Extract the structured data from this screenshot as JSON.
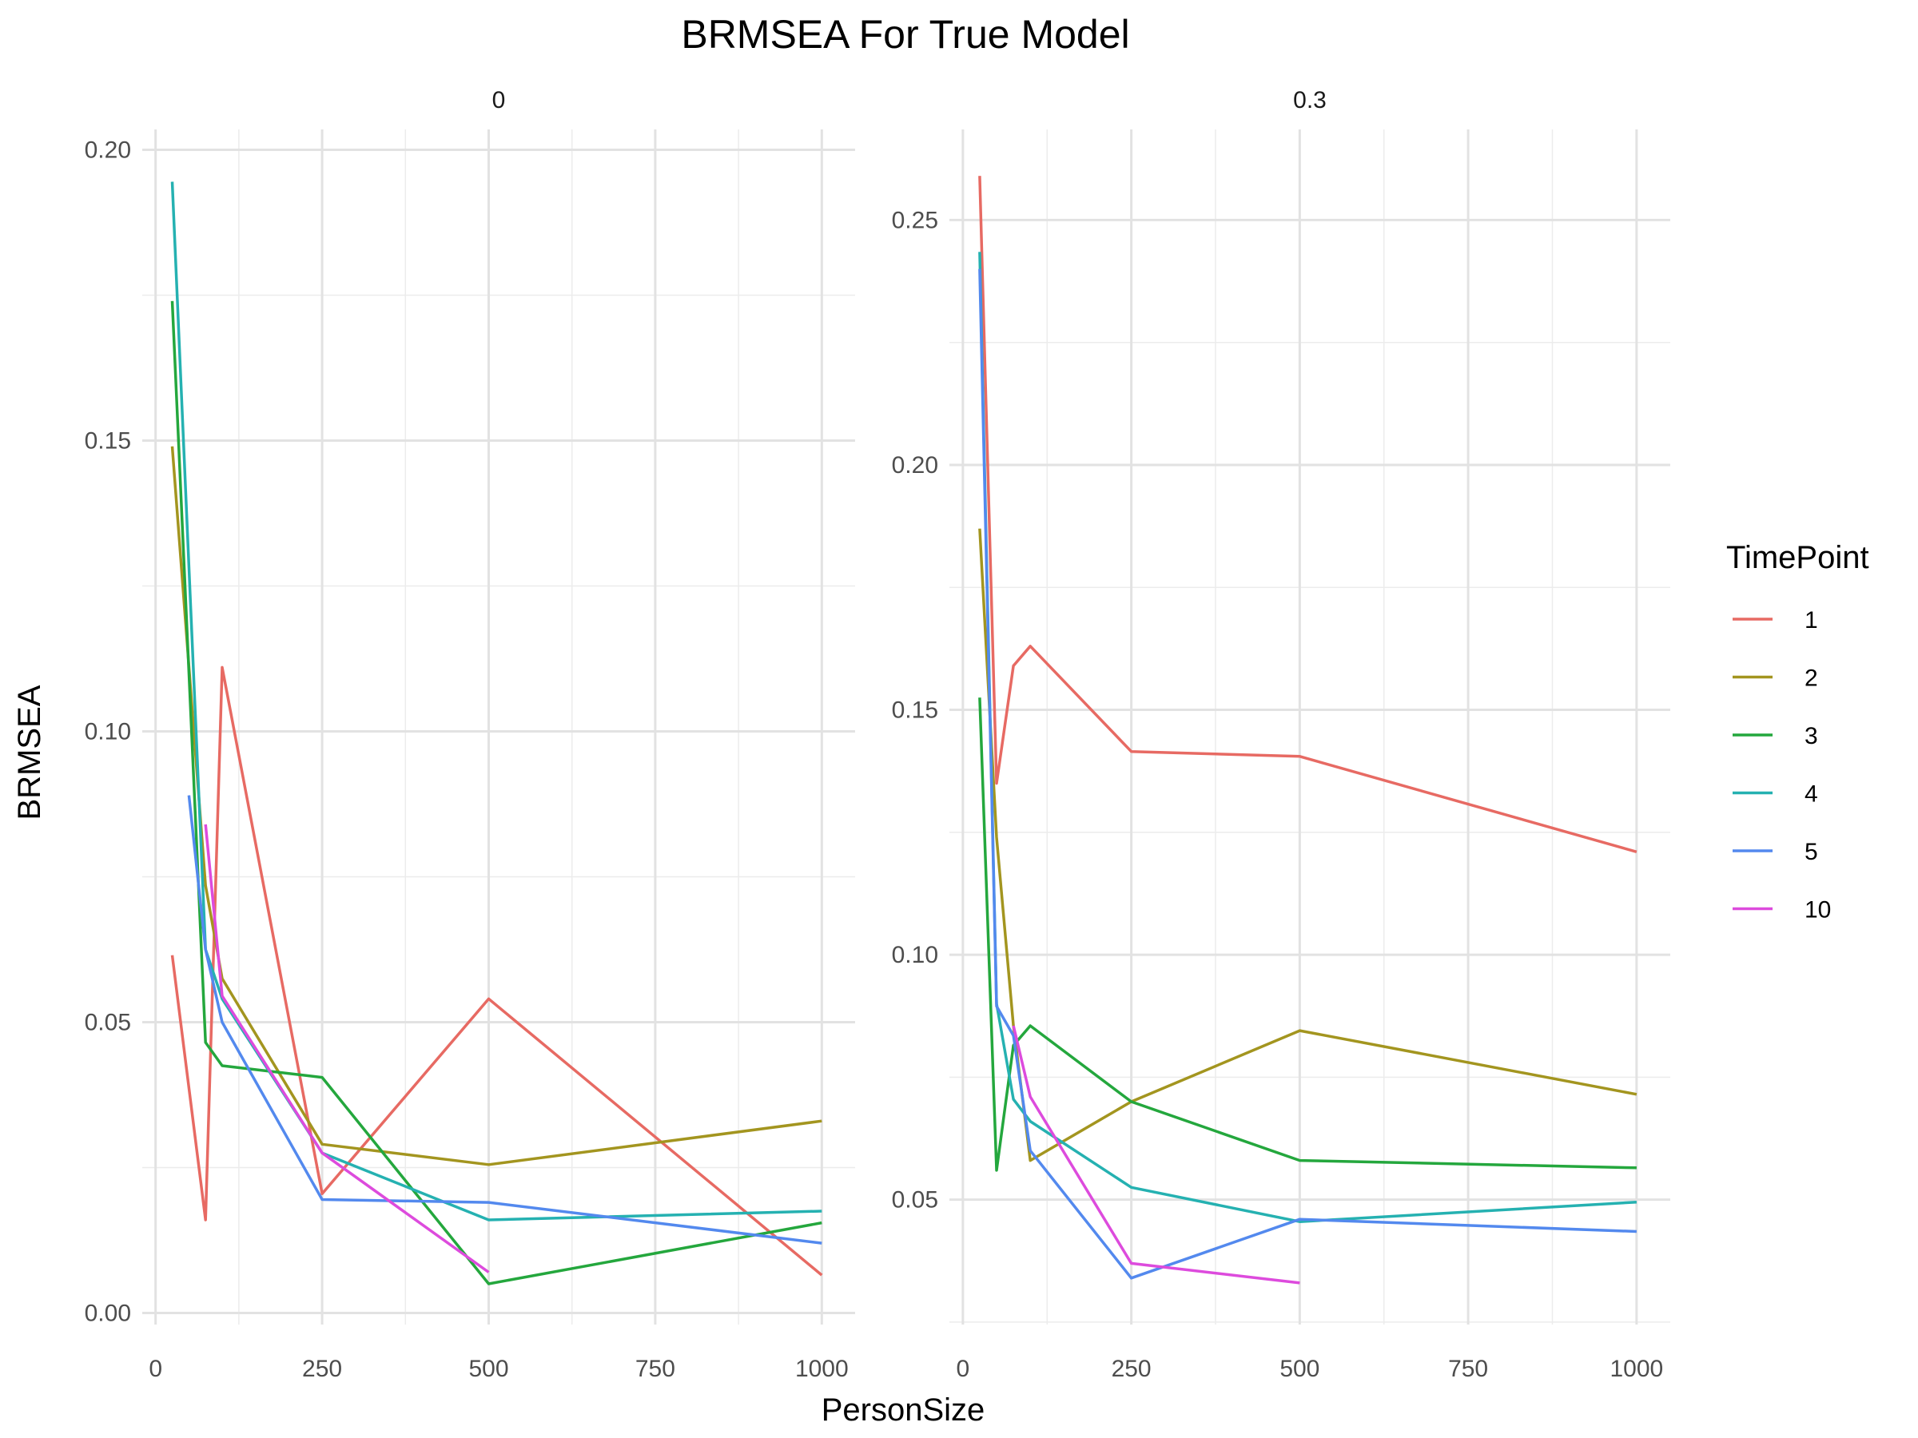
{
  "chart_data": {
    "type": "line",
    "title": "BRMSEA For True Model",
    "xlabel": "PersonSize",
    "ylabel": "BRMSEA",
    "legend": {
      "title": "TimePoint",
      "placement": "right",
      "entries": [
        "1",
        "2",
        "3",
        "4",
        "5",
        "10"
      ]
    },
    "colors": {
      "1": "#E76A63",
      "2": "#A3951F",
      "3": "#24A73D",
      "4": "#25B1B1",
      "5": "#5389EE",
      "10": "#DD4BDD"
    },
    "grid": true,
    "panels": [
      {
        "label": "0",
        "xlim": [
          -20,
          1050
        ],
        "ylim": [
          -0.002,
          0.2035
        ],
        "x_ticks": [
          0,
          250,
          500,
          750,
          1000
        ],
        "x_tick_labels": [
          "0",
          "250",
          "500",
          "750",
          "1000"
        ],
        "y_ticks": [
          0.0,
          0.05,
          0.1,
          0.15,
          0.2
        ],
        "y_tick_labels": [
          "0.00",
          "0.05",
          "0.10",
          "0.15",
          "0.20"
        ],
        "series": [
          {
            "name": "1",
            "x": [
              25,
              75,
              100,
              250,
              500,
              1000
            ],
            "y": [
              0.0615,
              0.016,
              0.111,
              0.0205,
              0.054,
              0.0065
            ]
          },
          {
            "name": "2",
            "x": [
              25,
              75,
              100,
              250,
              500,
              1000
            ],
            "y": [
              0.149,
              0.0735,
              0.0575,
              0.029,
              0.0255,
              0.033
            ]
          },
          {
            "name": "3",
            "x": [
              25,
              75,
              100,
              250,
              500,
              1000
            ],
            "y": [
              0.174,
              0.0465,
              0.0425,
              0.0405,
              0.005,
              0.0155
            ]
          },
          {
            "name": "4",
            "x": [
              25,
              75,
              100,
              250,
              500,
              1000
            ],
            "y": [
              0.1945,
              0.0625,
              0.054,
              0.0275,
              0.016,
              0.0175
            ]
          },
          {
            "name": "5",
            "x": [
              50,
              75,
              100,
              250,
              500,
              1000
            ],
            "y": [
              0.089,
              0.0625,
              0.05,
              0.0195,
              0.019,
              0.012
            ]
          },
          {
            "name": "10",
            "x": [
              75,
              100,
              250,
              500
            ],
            "y": [
              0.084,
              0.0545,
              0.0275,
              0.007
            ]
          }
        ]
      },
      {
        "label": "0.3",
        "xlim": [
          -20,
          1050
        ],
        "ylim": [
          0.0245,
          0.2685
        ],
        "x_ticks": [
          0,
          250,
          500,
          750,
          1000
        ],
        "x_tick_labels": [
          "0",
          "250",
          "500",
          "750",
          "1000"
        ],
        "y_ticks": [
          0.05,
          0.1,
          0.15,
          0.2,
          0.25
        ],
        "y_tick_labels": [
          "0.05",
          "0.10",
          "0.15",
          "0.20",
          "0.25"
        ],
        "series": [
          {
            "name": "1",
            "x": [
              25,
              50,
              75,
              100,
              250,
              500,
              1000
            ],
            "y": [
              0.259,
              0.135,
              0.159,
              0.163,
              0.1415,
              0.1405,
              0.121
            ]
          },
          {
            "name": "2",
            "x": [
              25,
              50,
              75,
              100,
              250,
              500,
              1000
            ],
            "y": [
              0.187,
              0.124,
              0.0855,
              0.058,
              0.07,
              0.0845,
              0.0715
            ]
          },
          {
            "name": "3",
            "x": [
              25,
              50,
              75,
              100,
              250,
              500,
              1000
            ],
            "y": [
              0.1525,
              0.056,
              0.0815,
              0.0855,
              0.07,
              0.058,
              0.0565
            ]
          },
          {
            "name": "4",
            "x": [
              25,
              50,
              75,
              100,
              250,
              500,
              1000
            ],
            "y": [
              0.2435,
              0.09,
              0.0705,
              0.066,
              0.0525,
              0.0455,
              0.0495
            ]
          },
          {
            "name": "5",
            "x": [
              25,
              50,
              75,
              100,
              250,
              500,
              1000
            ],
            "y": [
              0.24,
              0.0895,
              0.0835,
              0.06,
              0.034,
              0.046,
              0.0435
            ]
          },
          {
            "name": "10",
            "x": [
              75,
              100,
              250,
              500
            ],
            "y": [
              0.0855,
              0.071,
              0.037,
              0.033
            ]
          }
        ]
      }
    ]
  }
}
